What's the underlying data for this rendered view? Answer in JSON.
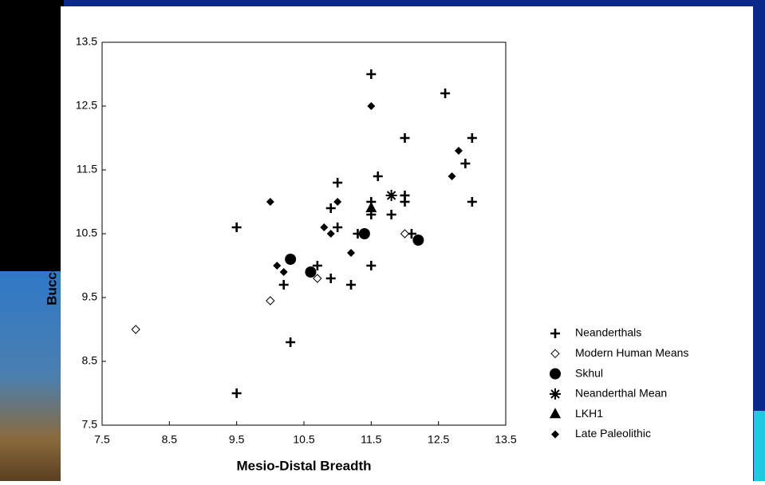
{
  "chart_data": {
    "type": "scatter",
    "x_label": "Mesio-Distal Breadth",
    "y_label": "Bucco-Lingual Length",
    "xlim": [
      7.5,
      13.5
    ],
    "ylim": [
      7.5,
      13.5
    ],
    "xticks": [
      7.5,
      8.5,
      9.5,
      10.5,
      11.5,
      12.5,
      13.5
    ],
    "yticks": [
      7.5,
      8.5,
      9.5,
      10.5,
      11.5,
      12.5,
      13.5
    ],
    "legend": "right",
    "series": [
      {
        "name": "Neanderthals",
        "marker": "plus",
        "color": "#000000",
        "x": [
          9.5,
          9.5,
          10.3,
          10.2,
          10.7,
          10.9,
          10.9,
          11.0,
          11.0,
          11.2,
          11.3,
          11.5,
          11.6,
          11.5,
          11.5,
          11.5,
          11.8,
          12.0,
          12.0,
          12.0,
          12.1,
          12.6,
          12.9,
          13.0,
          13.0
        ],
        "y": [
          10.6,
          8.0,
          8.8,
          9.7,
          10.0,
          9.8,
          10.9,
          11.3,
          10.6,
          9.7,
          10.5,
          13.0,
          11.4,
          11.0,
          10.8,
          10.0,
          10.8,
          12.0,
          11.1,
          11.0,
          10.5,
          12.7,
          11.6,
          12.0,
          11.0
        ]
      },
      {
        "name": "Modern Human Means",
        "marker": "diamond-open",
        "color": "#000000",
        "x": [
          8.0,
          10.0,
          10.7,
          12.0
        ],
        "y": [
          9.0,
          9.45,
          9.8,
          10.5
        ]
      },
      {
        "name": "Skhul",
        "marker": "circle",
        "color": "#000000",
        "x": [
          10.3,
          10.6,
          11.4,
          12.2
        ],
        "y": [
          10.1,
          9.9,
          10.5,
          10.4
        ]
      },
      {
        "name": "Neanderthal Mean",
        "marker": "asterisk",
        "color": "#000000",
        "x": [
          11.8
        ],
        "y": [
          11.1
        ]
      },
      {
        "name": "LKH1",
        "marker": "triangle",
        "color": "#000000",
        "x": [
          11.5
        ],
        "y": [
          10.9
        ]
      },
      {
        "name": "Late Paleolithic",
        "marker": "diamond",
        "color": "#000000",
        "x": [
          10.0,
          10.1,
          10.2,
          10.8,
          10.9,
          11.0,
          11.2,
          11.5,
          12.7,
          12.8
        ],
        "y": [
          11.0,
          10.0,
          9.9,
          10.6,
          10.5,
          11.0,
          10.2,
          12.5,
          11.4,
          11.8
        ]
      }
    ]
  }
}
